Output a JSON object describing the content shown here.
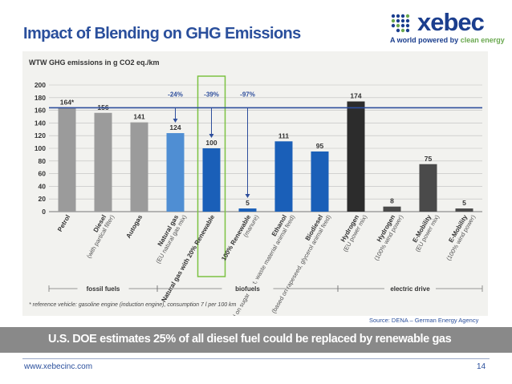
{
  "slide": {
    "title": "Impact of Blending on GHG Emissions"
  },
  "logo": {
    "word": "xebec",
    "tagline_prefix": "A world powered by ",
    "tagline_highlight": "clean energy"
  },
  "banner": {
    "text": "U.S. DOE  estimates 25% of all diesel fuel could be replaced by renewable gas"
  },
  "source": "Source: DENA – German Energy Agency",
  "footer": {
    "url": "www.xebecinc.com",
    "page": "14"
  },
  "colors": {
    "title": "#2a4f9c",
    "gray_bar": "#9b9b9b",
    "blue_bar": "#1a5fb8",
    "light_blue_bar": "#4f8ed3",
    "dark_bar": "#2c2c2c",
    "mid_dark_bar": "#4a4a4a",
    "reference_line": "#2e4e9c",
    "highlight_box": "#7cc242",
    "banner": "#898989"
  },
  "chart_data": {
    "type": "bar",
    "title": "WTW GHG emissions in g CO2 eq./km",
    "ylim": [
      0,
      200
    ],
    "yticks": [
      0,
      20,
      40,
      60,
      80,
      100,
      120,
      140,
      160,
      180,
      200
    ],
    "grid": true,
    "categories": [
      {
        "name": "Petrol",
        "sub": "",
        "value": 164,
        "label": "164*",
        "color": "#9b9b9b"
      },
      {
        "name": "Diesel",
        "sub": "(with partical filter)",
        "value": 156,
        "label": "156",
        "color": "#9b9b9b"
      },
      {
        "name": "Autogas",
        "sub": "",
        "value": 141,
        "label": "141",
        "color": "#9b9b9b"
      },
      {
        "name": "Natural gas",
        "sub": "(EU natural gas mix)",
        "value": 124,
        "label": "124",
        "color": "#4f8ed3"
      },
      {
        "name": "Natural gas with 20% Renewable",
        "sub": "",
        "value": 100,
        "label": "100",
        "color": "#1a5fb8"
      },
      {
        "name": "100% Renewable",
        "sub": "(manure)",
        "value": 5,
        "label": "5",
        "color": "#1a5fb8"
      },
      {
        "name": "Ethanol",
        "sub": "(based on sugar beet, waste material animal feed)",
        "value": 111,
        "label": "111",
        "color": "#1a5fb8"
      },
      {
        "name": "Biodiesel",
        "sub": "(based on rapeseed, glycerol animal feed)",
        "value": 95,
        "label": "95",
        "color": "#1a5fb8"
      },
      {
        "name": "Hydrogen",
        "sub": "(EU power mix)",
        "value": 174,
        "label": "174",
        "color": "#2c2c2c"
      },
      {
        "name": "Hydrogen",
        "sub": "(100% wind power)",
        "value": 8,
        "label": "8",
        "color": "#4a4a4a"
      },
      {
        "name": "E-Mobility",
        "sub": "(EU power mix)",
        "value": 75,
        "label": "75",
        "color": "#4a4a4a"
      },
      {
        "name": "E-Mobility",
        "sub": "(100% wind power)",
        "value": 5,
        "label": "5",
        "color": "#4a4a4a"
      }
    ],
    "reference_value": 164,
    "reductions": [
      {
        "label": "-24%",
        "target_index": 3
      },
      {
        "label": "-39%",
        "target_index": 4
      },
      {
        "label": "-97%",
        "target_index": 5
      }
    ],
    "groups": [
      {
        "label": "fossil fuels",
        "from": 0,
        "to": 2
      },
      {
        "label": "biofuels",
        "from": 3,
        "to": 7
      },
      {
        "label": "electric drive",
        "from": 8,
        "to": 11
      }
    ],
    "footnote": "* reference vehicle: gasoline engine (induction engine), consumption 7 l per 100 km"
  }
}
